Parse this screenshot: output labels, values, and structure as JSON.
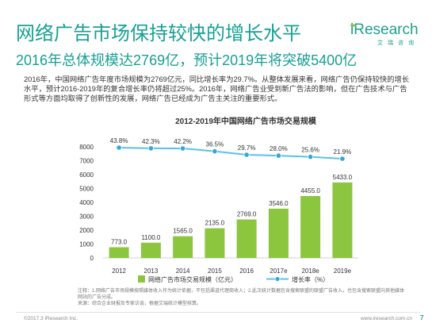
{
  "header": {
    "title": "网络广告市场保持较快的增长水平",
    "subtitle": "2016年总体规模达2769亿，预计2019年将突破5400亿"
  },
  "logo": {
    "name": "iResearch",
    "cn_name": "艾瑞咨询",
    "icon": "leaf-icon"
  },
  "summary": "2016年，中国网络广告年度市场规模为2769亿元，同比增长率为29.7%。从整体发展来看，网络广告仍保持较快的增长水平，预计2016-2019年的复合增长率仍将超过25%。2016年，网络广告业受到新广告法的影响，但在广告技术与广告形式等方面均取得了创新性的发展，网络广告已经成为广告主关注的重要形式。",
  "chart_data": {
    "type": "bar",
    "title": "2012-2019年中国网络广告市场交易规模",
    "categories": [
      "2012",
      "2013",
      "2014",
      "2015",
      "2016",
      "2017e",
      "2018e",
      "2019e"
    ],
    "series": [
      {
        "name": "网络广告市场交易规模（亿元）",
        "type": "bar",
        "values": [
          773.0,
          1100.0,
          1565.0,
          2135.0,
          2769.0,
          3546.0,
          4455.0,
          5433.0
        ]
      },
      {
        "name": "增长率（%）",
        "type": "line",
        "values": [
          43.8,
          42.3,
          42.2,
          36.5,
          29.7,
          28.0,
          25.6,
          21.9
        ]
      }
    ],
    "y_ticks": [
      0,
      1000,
      2000,
      3000,
      4000,
      5000,
      6000,
      7000,
      8000
    ],
    "ylim": [
      0,
      8000
    ],
    "grid": false,
    "legend": "bottom"
  },
  "notes": {
    "note": "注释：1.网络广告市场规模按照媒体收入作为统计依据，不包括渠道代理商收入；2.此次统计数据包含搜索联盟的联盟广告收入，也包含搜索联盟向其他媒体网站的广告分成。",
    "source": "来源：综合企业财报及专家访谈，根据艾瑞统计模型核算。"
  },
  "footer": {
    "copyright": "©2017.3 iResearch Inc.",
    "website": "www.iresearch.com.cn",
    "page_number": "7"
  },
  "colors": {
    "accent": "#17a094",
    "bar": "#8cc63f",
    "line": "#5bc0eb",
    "dot": "#2fa8dc",
    "axis": "#d0d0d0"
  }
}
